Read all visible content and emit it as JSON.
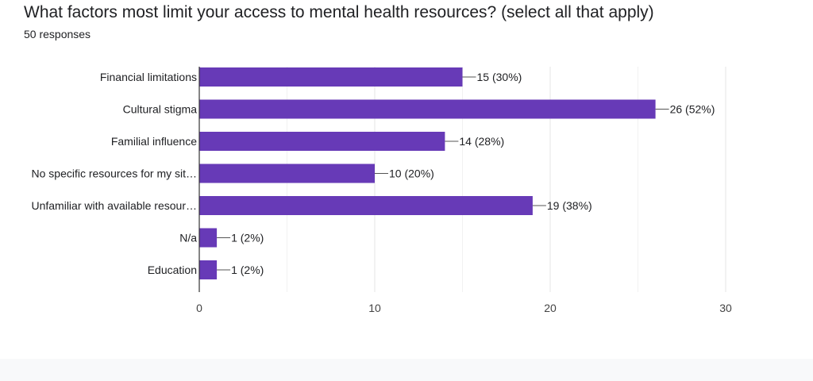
{
  "question": {
    "title": "What factors most limit your access to mental health resources? (select all that apply)",
    "responses": "50 responses"
  },
  "chart_data": {
    "type": "bar",
    "orientation": "horizontal",
    "categories": [
      "Financial limitations",
      "Cultural stigma",
      "Familial influence",
      "No specific resources for my sit…",
      "Unfamiliar with available resour…",
      "N/a",
      "Education"
    ],
    "values": [
      15,
      26,
      14,
      10,
      19,
      1,
      1
    ],
    "value_labels": [
      "15 (30%)",
      "26 (52%)",
      "14 (28%)",
      "10 (20%)",
      "19 (38%)",
      "1 (2%)",
      "1 (2%)"
    ],
    "xlim": [
      0,
      30
    ],
    "xticks": [
      0,
      10,
      20,
      30
    ],
    "grid": true,
    "bar_color": "#673ab7"
  }
}
